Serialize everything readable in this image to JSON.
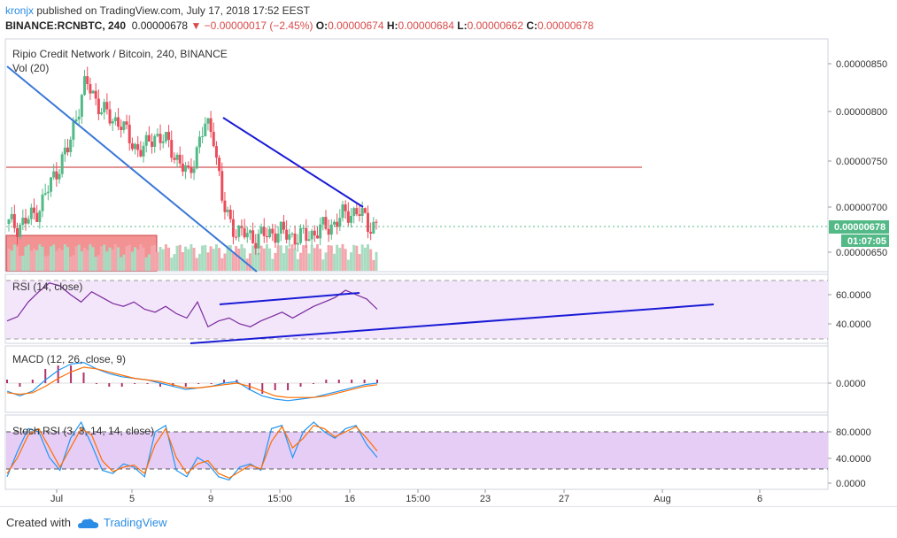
{
  "header": {
    "user": "kronjx",
    "published_text": " published on TradingView.com, July 17, 2018 17:52 EEST",
    "symbol": "BINANCE:RCNBTC, 240",
    "price": "0.00000678",
    "change": "−0.00000017 (−2.45%)",
    "o_label": "O:",
    "o_value": "0.00000674",
    "h_label": "H:",
    "h_value": "0.00000684",
    "l_label": "L:",
    "l_value": "0.00000662",
    "c_label": "C:",
    "c_value": "0.00000678"
  },
  "panes": {
    "main_title": "Ripio Credit Network / Bitcoin, 240, BINANCE",
    "vol_label": "Vol (20)",
    "rsi_label": "RSI (14, close)",
    "macd_label": "MACD (12, 26, close, 9)",
    "stoch_label": "Stoch RSI (3, 3, 14, 14, close)"
  },
  "price_badge": {
    "price": "0.00000678",
    "countdown": "01:07:05"
  },
  "footer": {
    "created": "Created with",
    "brand": "TradingView"
  },
  "colors": {
    "up": "#53b987",
    "down": "#eb4d5c",
    "trendline": "#1a1ad6",
    "rsi_line": "#7b2a9e",
    "rsi_band": "#f3e6fa",
    "stoch_band": "#e6cdf5",
    "macd_line": "#2196f3",
    "signal_line": "#ff6d00",
    "hline": "#c62828"
  },
  "chart_data": [
    {
      "type": "candlestick",
      "title": "Ripio Credit Network / Bitcoin, 240, BINANCE",
      "y_ticks": [
        "0.00000650",
        "0.00000700",
        "0.00000750",
        "0.00000800",
        "0.00000850"
      ],
      "x_ticks": [
        "Jul",
        "5",
        "9",
        "15:00",
        "16",
        "15:00",
        "23",
        "27",
        "Aug",
        "6"
      ],
      "last_price": "0.00000678",
      "horizontal_level": 7.41e-06,
      "ylim": [
        6.3e-06,
        8.7e-06
      ],
      "close_path": [
        680,
        678,
        683,
        690,
        705,
        725,
        745,
        760,
        800,
        830,
        815,
        800,
        790,
        790,
        770,
        760,
        760,
        775,
        770,
        760,
        745,
        730,
        760,
        785,
        775,
        700,
        680,
        670,
        668,
        665,
        668,
        672,
        670,
        668,
        665,
        668,
        672,
        676,
        680,
        688,
        693,
        692,
        680,
        678
      ],
      "volume_range": "low"
    },
    {
      "type": "line",
      "name": "RSI (14, close)",
      "y_ticks": [
        "40.0000",
        "60.0000"
      ],
      "bands": [
        30,
        70
      ],
      "values": [
        42,
        45,
        55,
        62,
        68,
        66,
        60,
        55,
        62,
        58,
        54,
        52,
        55,
        50,
        48,
        52,
        47,
        44,
        55,
        38,
        42,
        44,
        40,
        38,
        42,
        45,
        48,
        44,
        48,
        52,
        55,
        58,
        63,
        60,
        57,
        50
      ]
    },
    {
      "type": "line",
      "name": "MACD (12, 26, close, 9)",
      "y_ticks": [
        "0.0000"
      ],
      "macd": [
        -0.5,
        -0.8,
        -0.5,
        0.2,
        0.8,
        1.2,
        1.3,
        0.9,
        0.6,
        0.4,
        0.3,
        0.2,
        0.0,
        -0.2,
        -0.4,
        -0.3,
        -0.2,
        0.0,
        0.1,
        -0.4,
        -0.8,
        -1.0,
        -1.1,
        -1.0,
        -0.9,
        -0.7,
        -0.5,
        -0.3,
        -0.1,
        0.0
      ],
      "signal": [
        -0.6,
        -0.7,
        -0.6,
        -0.2,
        0.3,
        0.7,
        1.0,
        0.9,
        0.7,
        0.5,
        0.3,
        0.2,
        0.1,
        -0.1,
        -0.3,
        -0.3,
        -0.2,
        -0.1,
        0.0,
        -0.2,
        -0.5,
        -0.8,
        -0.9,
        -0.9,
        -0.9,
        -0.8,
        -0.6,
        -0.4,
        -0.2,
        -0.1
      ]
    },
    {
      "type": "line",
      "name": "Stoch RSI (3, 3, 14, 14, close)",
      "y_ticks": [
        "0.0000",
        "40.0000",
        "80.0000"
      ],
      "bands": [
        20,
        80
      ],
      "k": [
        10,
        50,
        85,
        80,
        40,
        20,
        70,
        95,
        60,
        20,
        15,
        30,
        25,
        10,
        80,
        90,
        20,
        10,
        40,
        30,
        10,
        5,
        25,
        30,
        20,
        85,
        90,
        40,
        80,
        95,
        80,
        70,
        85,
        90,
        60,
        40
      ],
      "d": [
        15,
        40,
        75,
        85,
        55,
        25,
        55,
        85,
        75,
        35,
        18,
        25,
        28,
        15,
        60,
        85,
        40,
        15,
        30,
        35,
        15,
        8,
        18,
        28,
        22,
        65,
        88,
        55,
        70,
        90,
        85,
        72,
        80,
        88,
        70,
        50
      ]
    }
  ]
}
